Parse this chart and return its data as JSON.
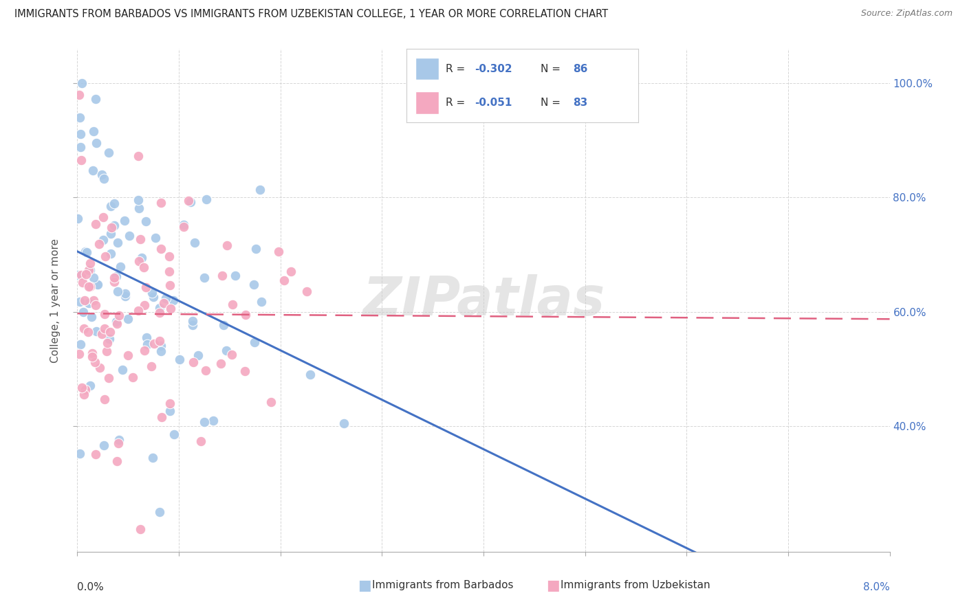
{
  "title": "IMMIGRANTS FROM BARBADOS VS IMMIGRANTS FROM UZBEKISTAN COLLEGE, 1 YEAR OR MORE CORRELATION CHART",
  "source": "Source: ZipAtlas.com",
  "ylabel": "College, 1 year or more",
  "barbados_color": "#a8c8e8",
  "uzbekistan_color": "#f4a8c0",
  "barbados_line_color": "#4472c4",
  "uzbekistan_line_color": "#e06080",
  "watermark": "ZIPatlas",
  "xmin": 0.0,
  "xmax": 0.08,
  "ymin": 0.18,
  "ymax": 1.06,
  "R_barbados": -0.302,
  "N_barbados": 86,
  "R_uzbekistan": -0.051,
  "N_uzbekistan": 83,
  "background_color": "#ffffff",
  "grid_color": "#cccccc"
}
